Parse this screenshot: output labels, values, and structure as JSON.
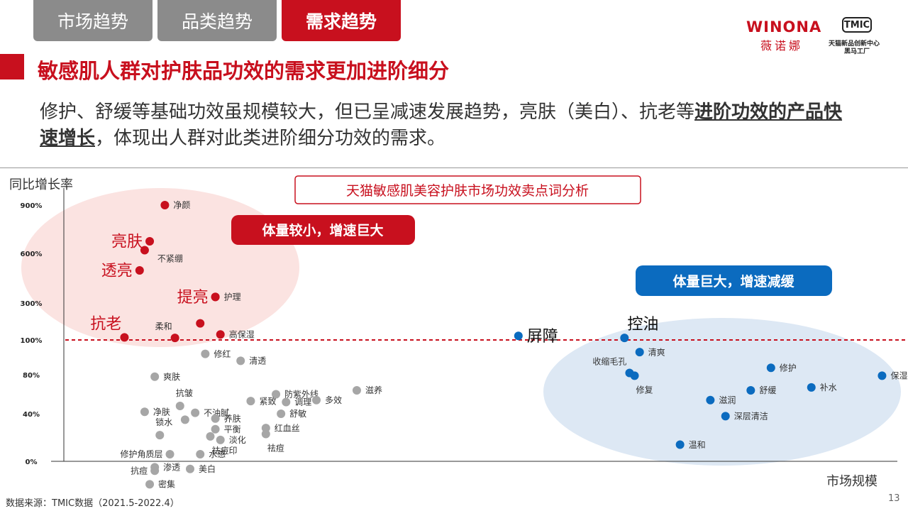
{
  "tabs": [
    "市场趋势",
    "品类趋势",
    "需求趋势"
  ],
  "active_tab": 2,
  "brand": {
    "name": "WINONA",
    "sub": "薇诺娜",
    "tmic_logo": "TMIC",
    "tmic_sub1": "天猫新品创新中心",
    "tmic_sub2": "黑马工厂"
  },
  "title": "敏感肌人群对护肤品功效的需求更加进阶细分",
  "summary": {
    "part1": "修护、舒缓等基础功效虽规模较大，但已呈减速发展趋势，亮肤（美白）、抗老等",
    "emphasis": "进阶功效的产品快速增长",
    "part2": "，体现出人群对此类进阶细分功效的需求。"
  },
  "source": "数据来源：TMIC数据（2021.5-2022.4）",
  "page_number": "13",
  "colors": {
    "red": "#c8101e",
    "blue": "#0b6bbf",
    "gray": "#a6a6a6",
    "pink_zone": "#fbe3e1",
    "blue_zone": "#dde8f4"
  },
  "chart_data": {
    "type": "scatter",
    "title": "天猫敏感肌美容护肤市场功效卖点词分析",
    "xlabel": "市场规模",
    "ylabel": "同比增长率",
    "yticks": [
      "0%",
      "40%",
      "80%",
      "100%",
      "300%",
      "600%",
      "900%"
    ],
    "reference_line": "100%",
    "zones": [
      {
        "name": "体量较小，增速巨大",
        "color": "#c8101e"
      },
      {
        "name": "体量巨大，增速减缓",
        "color": "#0b6bbf"
      }
    ],
    "series": [
      {
        "color": "#c8101e",
        "points": [
          {
            "label": "净颜",
            "x": 2.0,
            "y": 900,
            "big": false
          },
          {
            "label": "亮肤",
            "x": 1.7,
            "y": 675,
            "big": true
          },
          {
            "label": "不紧绷",
            "x": 1.6,
            "y": 620,
            "big": false
          },
          {
            "label": "透亮",
            "x": 1.5,
            "y": 497,
            "big": true
          },
          {
            "label": "提亮",
            "x": 3.0,
            "y": 337,
            "big": true
          },
          {
            "label": "护理",
            "x": 3.0,
            "y": 337,
            "big": false
          },
          {
            "label": "抗老",
            "x": 1.2,
            "y": 114,
            "big": true
          },
          {
            "label": "柔和",
            "x": 2.2,
            "y": 111,
            "big": false
          },
          {
            "label": "高保湿",
            "x": 3.1,
            "y": 130,
            "big": false
          },
          {
            "label": "",
            "x": 2.7,
            "y": 190,
            "big": false
          }
        ]
      },
      {
        "color": "#0b6bbf",
        "points": [
          {
            "label": "屏障",
            "x": 9.0,
            "y": 122,
            "big": true
          },
          {
            "label": "控油",
            "x": 11.1,
            "y": 111,
            "big": true
          },
          {
            "label": "清爽",
            "x": 11.4,
            "y": 93,
            "big": false
          },
          {
            "label": "收缩毛孔",
            "x": 11.2,
            "y": 81,
            "big": false
          },
          {
            "label": "修复",
            "x": 11.3,
            "y": 79,
            "big": false
          },
          {
            "label": "修护",
            "x": 14.0,
            "y": 84,
            "big": false
          },
          {
            "label": "补水",
            "x": 14.8,
            "y": 67,
            "big": false
          },
          {
            "label": "保湿",
            "x": 16.2,
            "y": 79,
            "big": false
          },
          {
            "label": "舒缓",
            "x": 13.6,
            "y": 64,
            "big": false
          },
          {
            "label": "滋润",
            "x": 12.8,
            "y": 54,
            "big": false
          },
          {
            "label": "深层清洁",
            "x": 13.1,
            "y": 38,
            "big": false
          },
          {
            "label": "温和",
            "x": 12.2,
            "y": 14,
            "big": false
          }
        ]
      },
      {
        "color": "#a6a6a6",
        "points": [
          {
            "label": "修红",
            "x": 2.8,
            "y": 92,
            "big": false
          },
          {
            "label": "清透",
            "x": 3.5,
            "y": 88,
            "big": false
          },
          {
            "label": "爽肤",
            "x": 1.8,
            "y": 78,
            "big": false
          },
          {
            "label": "滋养",
            "x": 5.8,
            "y": 64,
            "big": false
          },
          {
            "label": "防紫外线",
            "x": 4.2,
            "y": 60,
            "big": false
          },
          {
            "label": "多效",
            "x": 5.0,
            "y": 54,
            "big": false
          },
          {
            "label": "紧致",
            "x": 3.7,
            "y": 53,
            "big": false
          },
          {
            "label": "调理",
            "x": 4.4,
            "y": 52,
            "big": false
          },
          {
            "label": "抗皱",
            "x": 2.3,
            "y": 48,
            "big": false
          },
          {
            "label": "不油腻",
            "x": 2.6,
            "y": 41,
            "big": false
          },
          {
            "label": "净肤",
            "x": 1.6,
            "y": 42,
            "big": false
          },
          {
            "label": "养肤",
            "x": 3.0,
            "y": 36,
            "big": false
          },
          {
            "label": "舒敏",
            "x": 4.3,
            "y": 40,
            "big": false
          },
          {
            "label": "",
            "x": 2.4,
            "y": 35,
            "big": false
          },
          {
            "label": "锁水",
            "x": 1.9,
            "y": 22,
            "big": false
          },
          {
            "label": "平衡",
            "x": 3.0,
            "y": 27,
            "big": false
          },
          {
            "label": "祛痘印",
            "x": 2.9,
            "y": 21,
            "big": false
          },
          {
            "label": "红血丝",
            "x": 4.0,
            "y": 28,
            "big": false
          },
          {
            "label": "淡化",
            "x": 3.1,
            "y": 18,
            "big": false
          },
          {
            "label": "祛痘",
            "x": 4.0,
            "y": 23,
            "big": false
          },
          {
            "label": "修护角质层",
            "x": 2.1,
            "y": 6,
            "big": false
          },
          {
            "label": "水感",
            "x": 2.7,
            "y": 6,
            "big": false
          },
          {
            "label": "渗透",
            "x": 1.8,
            "y": -7,
            "big": false
          },
          {
            "label": "美白",
            "x": 2.5,
            "y": -9,
            "big": false
          },
          {
            "label": "抗痘",
            "x": 1.8,
            "y": -11,
            "big": false
          },
          {
            "label": "密集",
            "x": 1.7,
            "y": -27,
            "big": false
          }
        ]
      }
    ]
  }
}
